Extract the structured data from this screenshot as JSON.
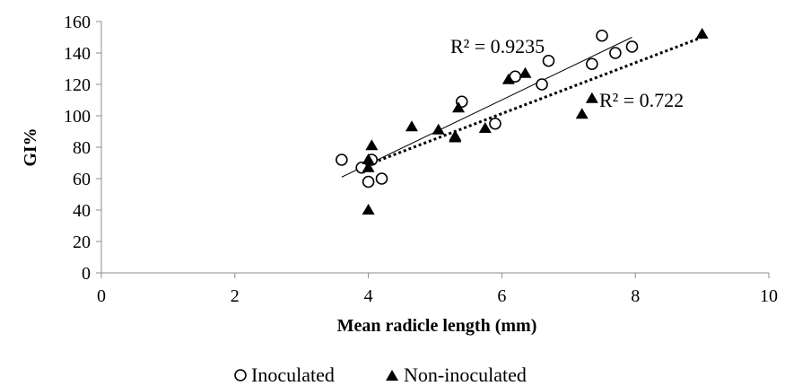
{
  "chart_data": {
    "type": "scatter",
    "xlabel": "Mean radicle length (mm)",
    "ylabel": "GI%",
    "xlim": [
      0,
      10
    ],
    "ylim": [
      0,
      160
    ],
    "xticks": [
      0,
      2,
      4,
      6,
      8,
      10
    ],
    "yticks": [
      0,
      20,
      40,
      60,
      80,
      100,
      120,
      140,
      160
    ],
    "grid": false,
    "legend_position": "bottom",
    "series": [
      {
        "name": "Inoculated",
        "marker": "open-circle",
        "color": "#000000",
        "points": [
          [
            3.6,
            72
          ],
          [
            3.9,
            67
          ],
          [
            4.0,
            58
          ],
          [
            4.05,
            72
          ],
          [
            4.2,
            60
          ],
          [
            5.4,
            109
          ],
          [
            5.9,
            95
          ],
          [
            6.2,
            125
          ],
          [
            6.6,
            120
          ],
          [
            6.7,
            135
          ],
          [
            7.35,
            133
          ],
          [
            7.5,
            151
          ],
          [
            7.7,
            140
          ],
          [
            7.95,
            144
          ]
        ],
        "trendline": {
          "style": "solid",
          "x": [
            3.6,
            7.95
          ],
          "y": [
            61,
            150
          ]
        },
        "r2_label": "R² = 0.9235"
      },
      {
        "name": "Non-inoculated",
        "marker": "filled-triangle",
        "color": "#000000",
        "points": [
          [
            4.0,
            40
          ],
          [
            4.0,
            67
          ],
          [
            4.0,
            72
          ],
          [
            4.05,
            81
          ],
          [
            4.65,
            93
          ],
          [
            5.05,
            91
          ],
          [
            5.3,
            87
          ],
          [
            5.3,
            86
          ],
          [
            5.35,
            105
          ],
          [
            5.75,
            92
          ],
          [
            6.1,
            123
          ],
          [
            6.35,
            127
          ],
          [
            7.2,
            101
          ],
          [
            7.35,
            111
          ],
          [
            9.0,
            152
          ]
        ],
        "trendline": {
          "style": "dotted",
          "x": [
            4.0,
            9.0
          ],
          "y": [
            69,
            150
          ]
        },
        "r2_label": "R² = 0.722"
      }
    ]
  }
}
